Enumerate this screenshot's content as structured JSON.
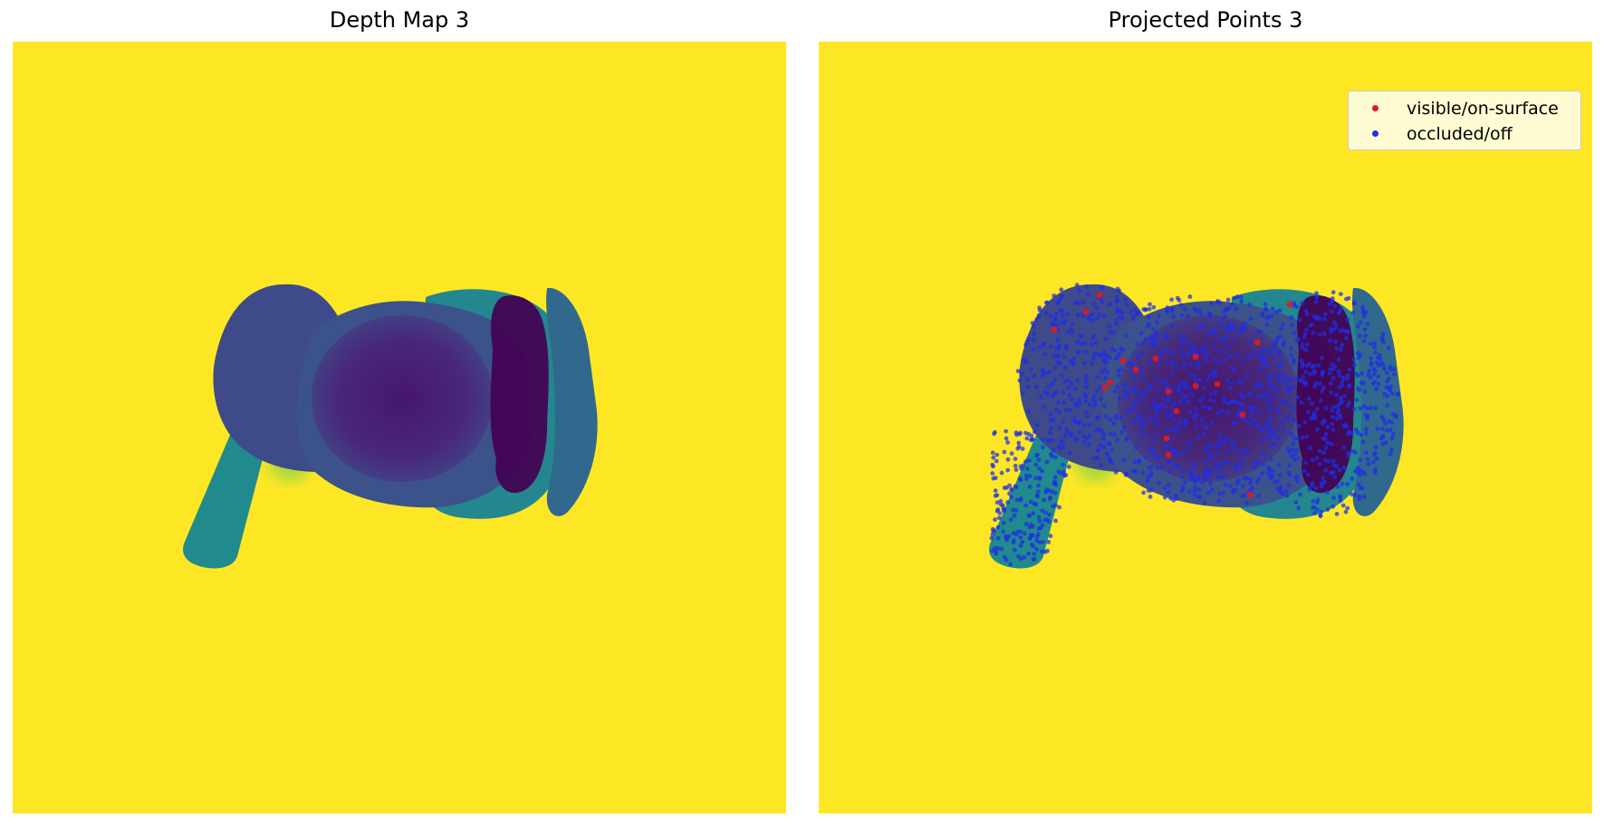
{
  "panels": [
    {
      "title": "Depth Map 3"
    },
    {
      "title": "Projected Points 3"
    }
  ],
  "legend": {
    "location": "upper-right",
    "items": [
      {
        "label": "visible/on-surface",
        "color": "#e31a1c"
      },
      {
        "label": "occluded/off",
        "color": "#1f2ee6"
      }
    ]
  },
  "colors": {
    "background": "#fde725",
    "body_teal": "#21918c",
    "body_blue": "#3b528b",
    "body_purple": "#482878",
    "body_dark": "#440154"
  }
}
